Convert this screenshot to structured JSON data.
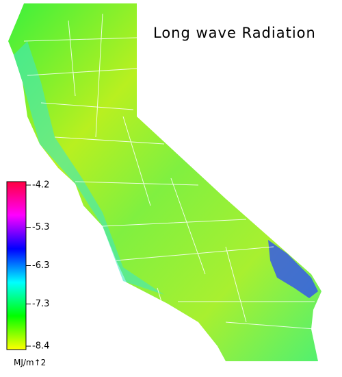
{
  "title": "Long wave Radiation",
  "colorbar": {
    "lim": [
      -8.4,
      -4.2
    ],
    "ticks": [
      -4.2,
      -5.3,
      -6.3,
      -7.3,
      -8.4
    ],
    "unit": "MJ/m↑2",
    "colors": [
      "#ffff00",
      "#00ff00",
      "#00ffff",
      "#0000ff",
      "#ff00ff",
      "#ff0040"
    ]
  }
}
